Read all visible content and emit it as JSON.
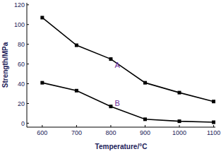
{
  "chart_data": {
    "type": "line",
    "x": [
      600,
      700,
      800,
      900,
      1000,
      1100
    ],
    "series": [
      {
        "name": "A",
        "color": "#000000",
        "values": [
          107,
          79,
          65,
          41,
          31,
          22
        ]
      },
      {
        "name": "B",
        "color": "#000000",
        "values": [
          41,
          33,
          17,
          4,
          2,
          1
        ]
      }
    ],
    "xlim": [
      555,
      1105
    ],
    "ylim": [
      -4,
      122
    ],
    "xticks": [
      600,
      700,
      800,
      900,
      1000,
      1100
    ],
    "yticks": [
      0,
      20,
      40,
      60,
      80,
      100,
      120
    ],
    "x_label": "Temperature/°C",
    "y_label": "Strength/MPa",
    "grid": false,
    "marker": "square"
  }
}
